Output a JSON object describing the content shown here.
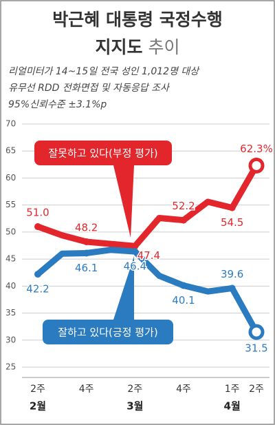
{
  "chart_data": {
    "type": "line",
    "title": "박근혜 대통령 국정수행",
    "title_line2": "지지도",
    "title_line2_light": "추이",
    "subtitle": [
      "리얼미터가 14~15일 전국 성인 1,012명 대상",
      "유무선 RDD 전화면접 및 자동응답 조사",
      "95%신뢰수준 ±3.1%p"
    ],
    "x": [
      0,
      1,
      2,
      3,
      4,
      5,
      6,
      7,
      8,
      9
    ],
    "categories": [
      "2주",
      null,
      "4주",
      null,
      "2주",
      null,
      "4주",
      null,
      "1주",
      "2주"
    ],
    "months": [
      "2월",
      null,
      null,
      null,
      "3월",
      null,
      null,
      null,
      "4월",
      null
    ],
    "series": [
      {
        "name": "잘못하고 있다(부정 평가)",
        "color": "#e3262b",
        "values": [
          51.0,
          49.4,
          48.2,
          47.8,
          47.4,
          52.6,
          52.2,
          55.6,
          54.5,
          62.3
        ],
        "value_labels": [
          "51.0",
          null,
          "48.2",
          null,
          "47.4",
          null,
          "52.2",
          null,
          "54.5",
          "62.3%"
        ]
      },
      {
        "name": "잘하고 있다(긍정 평가)",
        "color": "#2b7bc0",
        "values": [
          42.2,
          46.0,
          46.1,
          46.7,
          46.4,
          41.9,
          40.1,
          39.0,
          39.6,
          31.5
        ],
        "value_labels": [
          "42.2",
          null,
          "46.1",
          null,
          "46.4",
          null,
          "40.1",
          null,
          "39.6",
          "31.5"
        ]
      }
    ],
    "ylim": [
      25,
      70
    ],
    "yticks": [
      25,
      30,
      35,
      40,
      45,
      50,
      55,
      60,
      65,
      70
    ],
    "grid": true
  }
}
